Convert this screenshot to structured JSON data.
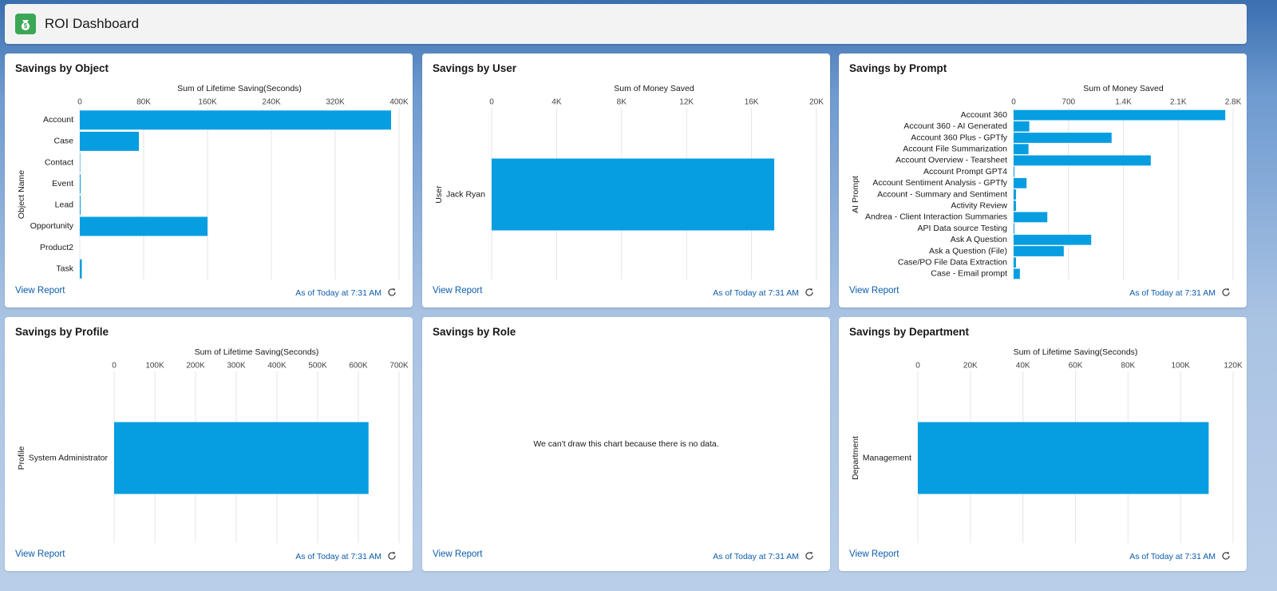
{
  "header": {
    "title": "ROI Dashboard"
  },
  "chart_data": [
    {
      "type": "barh",
      "title": "Savings by Object",
      "x_label": "Sum of Lifetime Saving(Seconds)",
      "y_label": "Object Name",
      "categories": [
        "Account",
        "Case",
        "Contact",
        "Event",
        "Lead",
        "Opportunity",
        "Product2",
        "Task"
      ],
      "values": [
        390000,
        74000,
        500,
        1000,
        1000,
        160000,
        0,
        2500
      ],
      "color": "#069ee1",
      "xlim": [
        0,
        400000
      ],
      "xticks": [
        0,
        {
          "value": 80000,
          "label": "80K"
        },
        {
          "value": 160000,
          "label": "160K"
        },
        {
          "value": 240000,
          "label": "240K"
        },
        {
          "value": 320000,
          "label": "320K"
        },
        {
          "value": 400000,
          "label": "400K"
        }
      ],
      "grid": true,
      "link": "View Report",
      "updated": "As of Today at 7:31 AM"
    },
    {
      "type": "barh",
      "title": "Savings by User",
      "x_label": "Sum of Money Saved",
      "y_label": "User",
      "categories": [
        "Jack Ryan"
      ],
      "values": [
        17400
      ],
      "color": "#069ee1",
      "xlim": [
        0,
        20000
      ],
      "xticks": [
        0,
        {
          "value": 4000,
          "label": "4K"
        },
        {
          "value": 8000,
          "label": "8K"
        },
        {
          "value": 12000,
          "label": "12K"
        },
        {
          "value": 16000,
          "label": "16K"
        },
        {
          "value": 20000,
          "label": "20K"
        }
      ],
      "grid": true,
      "link": "View Report",
      "updated": "As of Today at 7:31 AM"
    },
    {
      "type": "barh",
      "title": "Savings by Prompt",
      "x_label": "Sum of Money Saved",
      "y_label": "AI Prompt",
      "categories": [
        "Account 360",
        "Account 360 - AI Generated",
        "Account 360 Plus - GPTfy",
        "Account File Summarization",
        "Account Overview - Tearsheet",
        "Account Prompt GPT4",
        "Account Sentiment Analysis - GPTfy",
        "Account - Summary and Sentiment",
        "Activity Review",
        "Andrea - Client Interaction Summaries",
        "API Data source Testing",
        "Ask A Question",
        "Ask a Question (File)",
        "Case/PO File Data Extraction",
        "Case - Email prompt"
      ],
      "values": [
        2700,
        200,
        1250,
        190,
        1750,
        10,
        165,
        30,
        30,
        430,
        10,
        990,
        640,
        30,
        80
      ],
      "color": "#069ee1",
      "xlim": [
        0,
        2800
      ],
      "xticks": [
        0,
        700,
        {
          "value": 1400,
          "label": "1.4K"
        },
        {
          "value": 2100,
          "label": "2.1K"
        },
        {
          "value": 2800,
          "label": "2.8K"
        }
      ],
      "grid": true,
      "link": "View Report",
      "updated": "As of Today at 7:31 AM"
    },
    {
      "type": "barh",
      "title": "Savings by Profile",
      "x_label": "Sum of Lifetime Saving(Seconds)",
      "y_label": "Profile",
      "categories": [
        "System Administrator"
      ],
      "values": [
        625000
      ],
      "color": "#069ee1",
      "xlim": [
        0,
        700000
      ],
      "xticks": [
        0,
        {
          "value": 100000,
          "label": "100K"
        },
        {
          "value": 200000,
          "label": "200K"
        },
        {
          "value": 300000,
          "label": "300K"
        },
        {
          "value": 400000,
          "label": "400K"
        },
        {
          "value": 500000,
          "label": "500K"
        },
        {
          "value": 600000,
          "label": "600K"
        },
        {
          "value": 700000,
          "label": "700K"
        }
      ],
      "grid": true,
      "link": "View Report",
      "updated": "As of Today at 7:31 AM"
    },
    {
      "type": "empty",
      "title": "Savings by Role",
      "message": "We can't draw this chart because there is no data.",
      "link": "View Report",
      "updated": "As of Today at 7:31 AM"
    },
    {
      "type": "barh",
      "title": "Savings by Department",
      "x_label": "Sum of Lifetime Saving(Seconds)",
      "y_label": "Department",
      "categories": [
        "Management"
      ],
      "values": [
        110700
      ],
      "color": "#069ee1",
      "xlim": [
        0,
        120000
      ],
      "xticks": [
        0,
        {
          "value": 20000,
          "label": "20K"
        },
        {
          "value": 40000,
          "label": "40K"
        },
        {
          "value": 60000,
          "label": "60K"
        },
        {
          "value": 80000,
          "label": "80K"
        },
        {
          "value": 100000,
          "label": "100K"
        },
        {
          "value": 120000,
          "label": "120K"
        }
      ],
      "grid": true,
      "link": "View Report",
      "updated": "As of Today at 7:31 AM"
    }
  ]
}
